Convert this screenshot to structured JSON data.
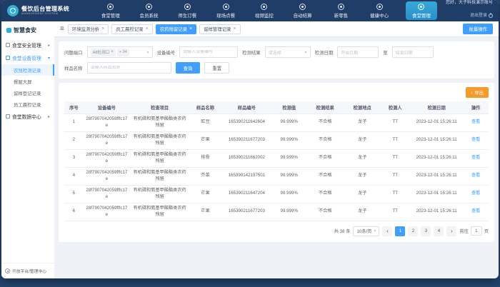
{
  "header": {
    "logo": {
      "title": "餐饮后台管理系统",
      "subtitle": "MANAGEMENT SYSTEM"
    },
    "nav_items": [
      {
        "label": "食堂管理",
        "icon": "canteen"
      },
      {
        "label": "会员系统",
        "icon": "member"
      },
      {
        "label": "师生订餐",
        "icon": "meal-order"
      },
      {
        "label": "现场点餐",
        "icon": "dine-in"
      },
      {
        "label": "视频监控",
        "icon": "video-monitor"
      },
      {
        "label": "自动结算",
        "icon": "auto-settle"
      },
      {
        "label": "新零售",
        "icon": "retail"
      },
      {
        "label": "健康中心",
        "icon": "health"
      }
    ],
    "active_app": {
      "label": "食堂管理"
    },
    "user": {
      "greeting": "您好，大子科技演示账号",
      "logout": "退出登录"
    }
  },
  "sidebar": {
    "title": "智慧食安",
    "groups": [
      {
        "label": "食堂安全管理",
        "expanded": false,
        "active": false,
        "children": []
      },
      {
        "label": "食堂设备管理",
        "expanded": true,
        "active": true,
        "children": [
          {
            "label": "农残检测记录",
            "active": true
          },
          {
            "label": "餐厨大屏",
            "active": false
          },
          {
            "label": "留样登记记录",
            "active": false
          },
          {
            "label": "员工晨检记录",
            "active": false
          }
        ]
      },
      {
        "label": "食堂数据中心",
        "expanded": false,
        "active": false,
        "children": []
      }
    ],
    "footer": "开放平台/管理中心"
  },
  "tabs": {
    "items": [
      {
        "label": "环境监测分析",
        "active": false
      },
      {
        "label": "员工晨检记录",
        "active": false
      },
      {
        "label": "农药残留记录",
        "active": true
      },
      {
        "label": "留样管理记录",
        "active": false
      }
    ],
    "action": "批量操作"
  },
  "filters": {
    "port": {
      "label": "问题端口",
      "tag": "A8检测口",
      "more": "+ 34"
    },
    "device": {
      "label": "设备编号",
      "placeholder": "请输入设备编号"
    },
    "result": {
      "label": "检测结果",
      "placeholder": "请选择"
    },
    "date": {
      "label": "检测日期",
      "start_placeholder": "开始日期",
      "separator": "至",
      "end_placeholder": "结束日期"
    },
    "sample": {
      "label": "样品名称",
      "placeholder": "请输入样品名称"
    },
    "search": "查询",
    "reset": "重置"
  },
  "toolbar": {
    "export": "导出"
  },
  "table": {
    "columns": [
      "序号",
      "设备编号",
      "检查项目",
      "样品名称",
      "样品编号",
      "检测值",
      "检测结果",
      "检测地点",
      "检测人",
      "检测日期",
      "操作"
    ],
    "action": "查看",
    "rows": [
      {
        "index": "1",
        "device": "28f7907042059fffc17e",
        "item": "有机磷和氨基甲酸酯类农药残留",
        "sample": "豇豆",
        "sample_no": "165390211642604",
        "value": "99.999%",
        "result": "不合格",
        "location": "龙子",
        "inspector": "TT",
        "date": "2023-12-01 15:26:11"
      },
      {
        "index": "2",
        "device": "28f7907042059fffc17e",
        "item": "有机磷和氨基甲酸酯类农药残留",
        "sample": "芒果",
        "sample_no": "165390211677203",
        "value": "99.999%",
        "result": "不合格",
        "location": "龙子",
        "inspector": "TT",
        "date": "2023-12-01 15:26:11"
      },
      {
        "index": "3",
        "device": "28f7907042059fffc17e",
        "item": "有机磷和氨基甲酸酯类农药残留",
        "sample": "排骨",
        "sample_no": "165390211662002",
        "value": "99.999%",
        "result": "不合格",
        "location": "龙子",
        "inspector": "TT",
        "date": "2023-12-01 15:26:11"
      },
      {
        "index": "4",
        "device": "28f7907042059fffc17e",
        "item": "有机磷和氨基甲酸酯类农药残留",
        "sample": "芥菜",
        "sample_no": "165390142197501",
        "value": "99.999%",
        "result": "不合格",
        "location": "龙子",
        "inspector": "TT",
        "date": "2023-12-01 15:26:11"
      },
      {
        "index": "5",
        "device": "28f7907042059fffc17e",
        "item": "有机磷和氨基甲酸酯类农药残留",
        "sample": "芒果",
        "sample_no": "165390211647204",
        "value": "99.999%",
        "result": "不合格",
        "location": "龙子",
        "inspector": "TT",
        "date": "2023-12-01 15:26:11"
      },
      {
        "index": "6",
        "device": "28f7907042059fffc17e",
        "item": "有机磷和氨基甲酸酯类农药残留",
        "sample": "芒果",
        "sample_no": "165390211677203",
        "value": "99.999%",
        "result": "不合格",
        "location": "龙子",
        "inspector": "TT",
        "date": "2023-12-01 15:26:11"
      }
    ]
  },
  "pagination": {
    "total": "共 38 条",
    "page_size": "10条/页",
    "pages": [
      "1",
      "2",
      "3",
      "4"
    ],
    "current": "1",
    "goto_label": "前往",
    "goto_value": "1",
    "goto_suffix": "页"
  }
}
